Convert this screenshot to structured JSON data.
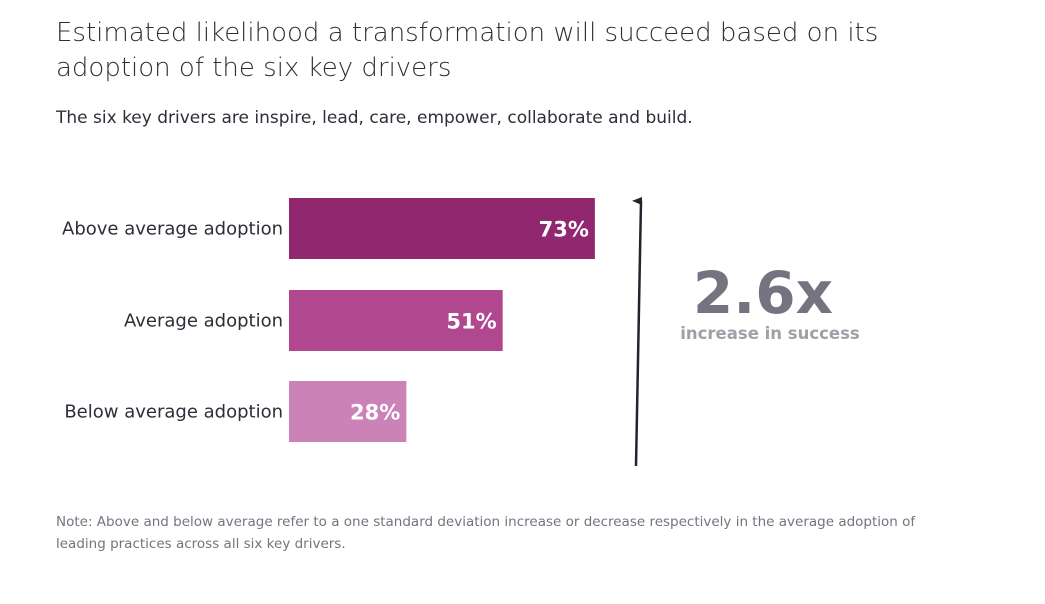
{
  "chart_data": {
    "type": "bar",
    "orientation": "horizontal",
    "title": "Estimated likelihood a transformation will succeed based on its adoption of the six key drivers",
    "subtitle": "The six key drivers are inspire, lead, care, empower, collaborate and build.",
    "categories": [
      "Above average adoption",
      "Average adoption",
      "Below average adoption"
    ],
    "values": [
      73,
      51,
      28
    ],
    "data_labels": [
      "73%",
      "51%",
      "28%"
    ],
    "colors": [
      "#91276f",
      "#b1488f",
      "#cb82b7"
    ],
    "xlim": [
      0,
      100
    ],
    "grid": false,
    "annotation": {
      "value": "2.6x",
      "text": "increase in success",
      "color": "#747480"
    },
    "note": "Note: Above and below average refer to a one standard deviation increase or decrease respectively in the average adoption of leading practices across all six key drivers."
  }
}
